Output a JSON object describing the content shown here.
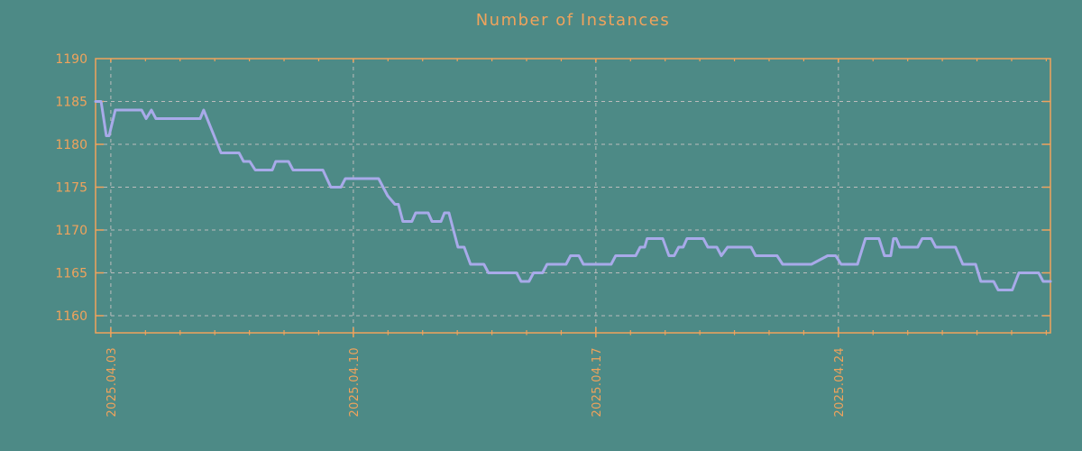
{
  "page": {
    "background_color": "#4d8a86"
  },
  "chart_data": {
    "type": "line",
    "title": "Number of Instances",
    "xlabel": "",
    "ylabel": "",
    "grid": true,
    "legend": false,
    "colors": {
      "background": "#4d8a86",
      "axis": "#f0a35c",
      "text": "#f0a35c",
      "grid": "#bcbcbc",
      "line": "#a8aae9"
    },
    "x_axis": {
      "labels": [
        "2025.04.03",
        "2025.04.10",
        "2025.04.17",
        "2025.04.24"
      ],
      "label_day_offsets": [
        0.44,
        7.44,
        14.44,
        21.44
      ],
      "first_tick_day": 0.44,
      "minor_tick_interval_days": 1,
      "range_days": [
        0,
        27.56
      ]
    },
    "y_axis": {
      "range": [
        1158,
        1190
      ],
      "tick_values": [
        1160,
        1165,
        1170,
        1175,
        1180,
        1185,
        1190
      ]
    },
    "series": [
      {
        "name": "instances",
        "points": [
          [
            0.0,
            1185
          ],
          [
            0.16,
            1185
          ],
          [
            0.31,
            1181
          ],
          [
            0.39,
            1181
          ],
          [
            0.57,
            1184
          ],
          [
            1.33,
            1184
          ],
          [
            1.46,
            1183
          ],
          [
            1.61,
            1184
          ],
          [
            1.74,
            1183
          ],
          [
            3.02,
            1183
          ],
          [
            3.12,
            1184
          ],
          [
            3.62,
            1179
          ],
          [
            4.14,
            1179
          ],
          [
            4.27,
            1178
          ],
          [
            4.45,
            1178
          ],
          [
            4.61,
            1177
          ],
          [
            5.1,
            1177
          ],
          [
            5.2,
            1178
          ],
          [
            5.57,
            1178
          ],
          [
            5.7,
            1177
          ],
          [
            6.56,
            1177
          ],
          [
            6.79,
            1175
          ],
          [
            7.08,
            1175
          ],
          [
            7.21,
            1176
          ],
          [
            8.17,
            1176
          ],
          [
            8.43,
            1174
          ],
          [
            8.64,
            1173
          ],
          [
            8.74,
            1173
          ],
          [
            8.87,
            1171
          ],
          [
            9.13,
            1171
          ],
          [
            9.24,
            1172
          ],
          [
            9.6,
            1172
          ],
          [
            9.71,
            1171
          ],
          [
            9.97,
            1171
          ],
          [
            10.07,
            1172
          ],
          [
            10.2,
            1172
          ],
          [
            10.46,
            1168
          ],
          [
            10.64,
            1168
          ],
          [
            10.82,
            1166
          ],
          [
            11.21,
            1166
          ],
          [
            11.34,
            1165
          ],
          [
            12.15,
            1165
          ],
          [
            12.28,
            1164
          ],
          [
            12.51,
            1164
          ],
          [
            12.64,
            1165
          ],
          [
            12.9,
            1165
          ],
          [
            13.03,
            1166
          ],
          [
            13.58,
            1166
          ],
          [
            13.71,
            1167
          ],
          [
            13.95,
            1167
          ],
          [
            14.08,
            1166
          ],
          [
            14.88,
            1166
          ],
          [
            15.01,
            1167
          ],
          [
            15.59,
            1167
          ],
          [
            15.72,
            1168
          ],
          [
            15.85,
            1168
          ],
          [
            15.92,
            1169
          ],
          [
            16.37,
            1169
          ],
          [
            16.55,
            1167
          ],
          [
            16.7,
            1167
          ],
          [
            16.83,
            1168
          ],
          [
            16.96,
            1168
          ],
          [
            17.07,
            1169
          ],
          [
            17.54,
            1169
          ],
          [
            17.67,
            1168
          ],
          [
            17.93,
            1168
          ],
          [
            18.06,
            1167
          ],
          [
            18.24,
            1168
          ],
          [
            18.92,
            1168
          ],
          [
            19.05,
            1167
          ],
          [
            19.67,
            1167
          ],
          [
            19.83,
            1166
          ],
          [
            20.66,
            1166
          ],
          [
            21.13,
            1167
          ],
          [
            21.36,
            1167
          ],
          [
            21.52,
            1166
          ],
          [
            21.99,
            1166
          ],
          [
            22.22,
            1169
          ],
          [
            22.61,
            1169
          ],
          [
            22.77,
            1167
          ],
          [
            22.95,
            1167
          ],
          [
            23.03,
            1169
          ],
          [
            23.11,
            1169
          ],
          [
            23.21,
            1168
          ],
          [
            23.73,
            1168
          ],
          [
            23.86,
            1169
          ],
          [
            24.12,
            1169
          ],
          [
            24.25,
            1168
          ],
          [
            24.82,
            1168
          ],
          [
            25.03,
            1166
          ],
          [
            25.4,
            1166
          ],
          [
            25.55,
            1164
          ],
          [
            25.92,
            1164
          ],
          [
            26.05,
            1163
          ],
          [
            26.46,
            1163
          ],
          [
            26.65,
            1165
          ],
          [
            27.22,
            1165
          ],
          [
            27.35,
            1164
          ],
          [
            27.56,
            1164
          ]
        ]
      }
    ]
  }
}
